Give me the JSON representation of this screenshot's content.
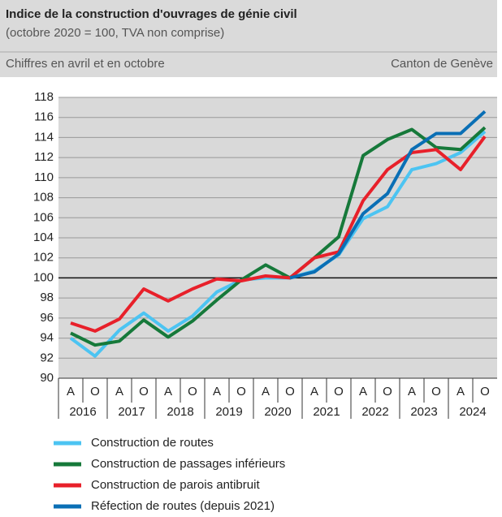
{
  "chart_data": {
    "type": "line",
    "title": "Indice de la construction d'ouvrages de génie civil",
    "subtitle": "(octobre 2020 = 100, TVA non comprise)",
    "note_left": "Chiffres en avril et en octobre",
    "note_right": "Canton de Genève",
    "categories": [
      "A",
      "O",
      "A",
      "O",
      "A",
      "O",
      "A",
      "O",
      "A",
      "O",
      "A",
      "O",
      "A",
      "O",
      "A",
      "O",
      "A",
      "O"
    ],
    "years": [
      "2016",
      "2017",
      "2018",
      "2019",
      "2020",
      "2021",
      "2022",
      "2023",
      "2024"
    ],
    "ylim": [
      90,
      118
    ],
    "yticks": [
      90,
      92,
      94,
      96,
      98,
      100,
      102,
      104,
      106,
      108,
      110,
      112,
      114,
      116,
      118
    ],
    "grid": true,
    "reference_line": 100,
    "series": [
      {
        "name": "Construction de routes",
        "color": "#4cc4f2",
        "values": [
          94.0,
          92.2,
          94.8,
          96.5,
          94.7,
          96.2,
          98.6,
          99.8,
          100.0,
          100.0,
          100.7,
          102.3,
          105.9,
          107.1,
          110.8,
          111.4,
          112.5,
          114.6
        ]
      },
      {
        "name": "Construction de passages inférieurs",
        "color": "#16793a",
        "values": [
          94.5,
          93.3,
          93.7,
          95.8,
          94.1,
          95.7,
          97.8,
          99.8,
          101.3,
          100.0,
          102.0,
          104.1,
          112.2,
          113.8,
          114.8,
          113.0,
          112.8,
          115.0
        ]
      },
      {
        "name": "Construction de parois antibruit",
        "color": "#e8202a",
        "values": [
          95.5,
          94.7,
          95.9,
          98.9,
          97.7,
          98.9,
          99.9,
          99.7,
          100.2,
          100.0,
          102.0,
          102.6,
          107.7,
          110.8,
          112.5,
          112.8,
          110.8,
          114.1
        ]
      },
      {
        "name": "Réfection de routes (depuis 2021)",
        "color": "#0a6fb5",
        "values": [
          null,
          null,
          null,
          null,
          null,
          null,
          null,
          null,
          null,
          100.0,
          100.6,
          102.4,
          106.4,
          108.4,
          112.8,
          114.4,
          114.4,
          116.6
        ]
      }
    ]
  }
}
